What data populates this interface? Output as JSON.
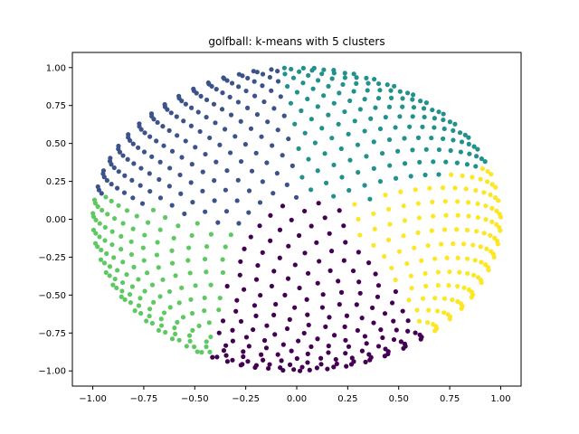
{
  "chart_data": {
    "type": "scatter",
    "title": "golfball: k-means with 5 clusters",
    "xlabel": "",
    "ylabel": "",
    "xlim": [
      -1.1,
      1.1
    ],
    "ylim": [
      -1.1,
      1.1
    ],
    "grid": false,
    "x_ticks": [
      -1.0,
      -0.75,
      -0.5,
      -0.25,
      0.0,
      0.25,
      0.5,
      0.75,
      1.0
    ],
    "y_ticks": [
      -1.0,
      -0.75,
      -0.5,
      -0.25,
      0.0,
      0.25,
      0.5,
      0.75,
      1.0
    ],
    "x_tick_labels": [
      "−1.00",
      "−0.75",
      "−0.50",
      "−0.25",
      "0.00",
      "0.25",
      "0.50",
      "0.75",
      "1.00"
    ],
    "y_tick_labels": [
      "−1.00",
      "−0.75",
      "−0.50",
      "−0.25",
      "0.00",
      "0.25",
      "0.50",
      "0.75",
      "1.00"
    ],
    "points_source": "golden-spiral points on the unit sphere, projected to x-y, rotated so the 'north pole' spiral center sits near (0, 0) and the rim fills the unit disc",
    "n_points_approx": 1500,
    "clusters": [
      {
        "id": 0,
        "color": "#440154",
        "region": "center and bottom",
        "centroid": [
          0.05,
          -0.45
        ]
      },
      {
        "id": 1,
        "color": "#3b528b",
        "region": "upper-left",
        "centroid": [
          -0.5,
          0.45
        ]
      },
      {
        "id": 2,
        "color": "#21918c",
        "region": "upper-right",
        "centroid": [
          0.45,
          0.55
        ]
      },
      {
        "id": 3,
        "color": "#5ec962",
        "region": "left and lower-left",
        "centroid": [
          -0.75,
          -0.35
        ]
      },
      {
        "id": 4,
        "color": "#fde725",
        "region": "right and lower-right",
        "centroid": [
          0.72,
          -0.1
        ]
      }
    ]
  }
}
